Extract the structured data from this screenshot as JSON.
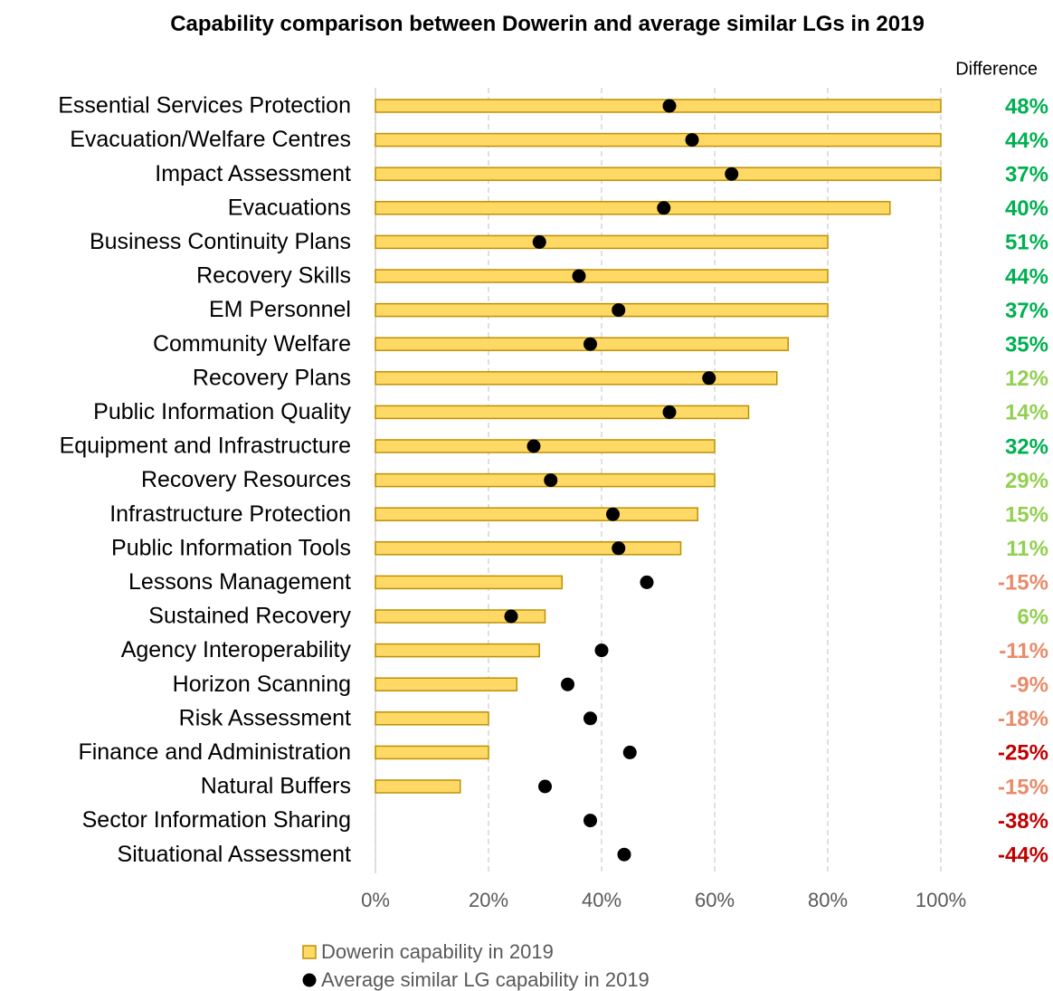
{
  "chart_data": {
    "type": "bar",
    "orientation": "horizontal",
    "title": "Capability comparison between Dowerin and average similar LGs in 2019",
    "categories": [
      "Essential Services Protection",
      "Evacuation/Welfare Centres",
      "Impact Assessment",
      "Evacuations",
      "Business Continuity Plans",
      "Recovery Skills",
      "EM Personnel",
      "Community Welfare",
      "Recovery Plans",
      "Public Information Quality",
      "Equipment and Infrastructure",
      "Recovery Resources",
      "Infrastructure Protection",
      "Public Information Tools",
      "Lessons Management",
      "Sustained Recovery",
      "Agency Interoperability",
      "Horizon Scanning",
      "Risk Assessment",
      "Finance and Administration",
      "Natural Buffers",
      "Sector Information Sharing",
      "Situational Assessment"
    ],
    "series": [
      {
        "name": "Dowerin capability in 2019",
        "style": "bar",
        "color": "#ffd966",
        "edge_color": "#bf9000",
        "values": [
          100,
          100,
          100,
          91,
          80,
          80,
          80,
          73,
          71,
          66,
          60,
          60,
          57,
          54,
          33,
          30,
          29,
          25,
          20,
          20,
          15,
          0,
          0
        ]
      },
      {
        "name": "Average similar LG capability in 2019",
        "style": "dot",
        "color": "#000000",
        "values": [
          52,
          56,
          63,
          51,
          29,
          36,
          43,
          38,
          59,
          52,
          28,
          31,
          42,
          43,
          48,
          24,
          40,
          34,
          38,
          45,
          30,
          38,
          44
        ]
      }
    ],
    "difference": {
      "header": "Difference",
      "values": [
        48,
        44,
        37,
        40,
        51,
        44,
        37,
        35,
        12,
        14,
        32,
        29,
        15,
        11,
        -15,
        6,
        -11,
        -9,
        -18,
        -25,
        -15,
        -38,
        -44
      ],
      "value_labels": [
        "48%",
        "44%",
        "37%",
        "40%",
        "51%",
        "44%",
        "37%",
        "35%",
        "12%",
        "14%",
        "32%",
        "29%",
        "15%",
        "11%",
        "-15%",
        "6%",
        "-11%",
        "-9%",
        "-18%",
        "-25%",
        "-15%",
        "-38%",
        "-44%"
      ],
      "colors": [
        "#00b050",
        "#00b050",
        "#00b050",
        "#00b050",
        "#00b050",
        "#00b050",
        "#00b050",
        "#00b050",
        "#92d050",
        "#92d050",
        "#00b050",
        "#92d050",
        "#92d050",
        "#92d050",
        "#e98b6b",
        "#92d050",
        "#e98b6b",
        "#e98b6b",
        "#e98b6b",
        "#c00000",
        "#e98b6b",
        "#c00000",
        "#c00000"
      ]
    },
    "xlim": [
      0,
      100
    ],
    "xticks": [
      {
        "value": 0,
        "label": "0%"
      },
      {
        "value": 20,
        "label": "20%"
      },
      {
        "value": 40,
        "label": "40%"
      },
      {
        "value": 60,
        "label": "60%"
      },
      {
        "value": 80,
        "label": "80%"
      },
      {
        "value": 100,
        "label": "100%"
      }
    ],
    "grid": true
  }
}
